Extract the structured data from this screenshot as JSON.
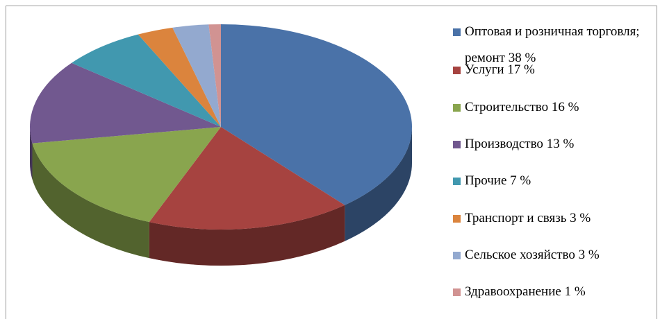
{
  "chart_data": {
    "type": "pie",
    "categories": [
      "Оптовая и розничная торговля; ремонт",
      "Услуги",
      "Строительство",
      "Производство",
      "Прочие",
      "Транспорт и связь",
      "Сельское хозяйство",
      "Здравоохранение"
    ],
    "values": [
      38,
      17,
      16,
      13,
      7,
      3,
      3,
      1
    ],
    "value_labels": [
      "38 %",
      "17 %",
      "16 %",
      "13 %",
      "7 %",
      "3 %",
      "3 %",
      "1 %"
    ],
    "colors": [
      "#4a72a8",
      "#a64340",
      "#89a54e",
      "#71588f",
      "#4198af",
      "#db843d",
      "#93a9cf",
      "#d19392"
    ],
    "legend": "right"
  }
}
